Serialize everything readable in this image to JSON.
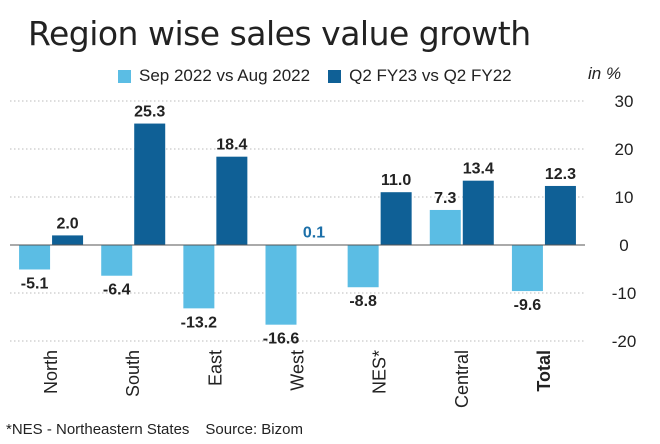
{
  "title": "Region wise sales value growth",
  "unit_label": "in %",
  "footer": {
    "note": "*NES - Northeastern States",
    "source": "Source: Bizom"
  },
  "colors": {
    "series1": "#5bbde4",
    "series2": "#0f6096",
    "gridline": "#bbbbbb",
    "zero_line": "#555555",
    "axis_text": "#222222",
    "highlight_label": "#1b6fa8"
  },
  "chart_data": {
    "type": "bar",
    "title": "Region wise sales value growth",
    "ylabel": "in %",
    "xlabel": "",
    "categories": [
      "North",
      "South",
      "East",
      "West",
      "NES*",
      "Central",
      "Total"
    ],
    "bold_categories": [
      "Total"
    ],
    "series": [
      {
        "name": "Sep 2022 vs Aug 2022",
        "values": [
          -5.1,
          -6.4,
          -13.2,
          -16.6,
          -8.8,
          7.3,
          -9.6
        ],
        "labels": [
          "-5.1",
          "-6.4",
          "-13.2",
          "-16.6",
          "-8.8",
          "7.3",
          "-9.6"
        ]
      },
      {
        "name": "Q2 FY23 vs Q2 FY22",
        "values": [
          2.0,
          25.3,
          18.4,
          0.1,
          11.0,
          13.4,
          12.3
        ],
        "labels": [
          "2.0",
          "25.3",
          "18.4",
          "0.1",
          "11.0",
          "13.4",
          "12.3"
        ]
      }
    ],
    "ylim": [
      -20,
      30
    ],
    "yticks": [
      30,
      20,
      10,
      0,
      -10,
      -20
    ],
    "grid": true,
    "legend": "top"
  }
}
